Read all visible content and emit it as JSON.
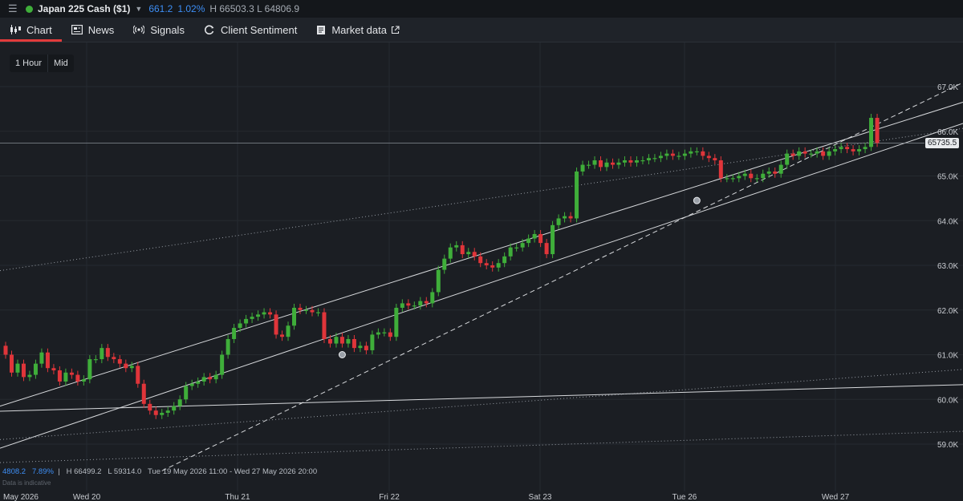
{
  "header": {
    "instrument": "Japan 225 Cash ($1)",
    "change": "661.2",
    "change_pct": "1.02%",
    "high_low": "H 66503.3 L 64806.9",
    "status_color": "#3fae3a"
  },
  "tabs": [
    {
      "label": "Chart",
      "icon": "candlestick-icon",
      "active": true
    },
    {
      "label": "News",
      "icon": "news-icon"
    },
    {
      "label": "Signals",
      "icon": "signal-icon"
    },
    {
      "label": "Client Sentiment",
      "icon": "sentiment-icon"
    },
    {
      "label": "Market data",
      "icon": "document-icon",
      "external_icon": "external-link-icon"
    }
  ],
  "toolbar": {
    "timeframe": "1 Hour",
    "price_mode": "Mid"
  },
  "info": {
    "change": "4808.2",
    "change_pct": "7.89%",
    "high": "H 66499.2",
    "low": "L 59314.0",
    "range": "Tue 19 May 2026 11:00 - Wed 27 May 2026 20:00",
    "disclaimer": "Data is indicative"
  },
  "current_price_label": "65735.5",
  "chart_data": {
    "type": "candlestick",
    "y_ticks": [
      "67.0K",
      "66.0K",
      "65.0K",
      "64.0K",
      "63.0K",
      "62.0K",
      "61.0K",
      "60.0K",
      "59.0K"
    ],
    "x_ticks": [
      "May 2026",
      "Wed 20",
      "Thu 21",
      "Fri 22",
      "Sat 23",
      "Tue 26",
      "Wed 27"
    ],
    "ylim": [
      58400,
      67600
    ],
    "colors": {
      "up": "#3fae3a",
      "down": "#e0353a",
      "line": "#d7d9dc",
      "grid": "#262a30"
    },
    "closes": [
      61000,
      60600,
      60800,
      60500,
      60550,
      60800,
      61050,
      60700,
      60650,
      60400,
      60600,
      60550,
      60400,
      60450,
      60900,
      60900,
      61150,
      60950,
      60900,
      60800,
      60700,
      60750,
      60350,
      59900,
      59750,
      59650,
      59700,
      59750,
      59850,
      60000,
      60300,
      60350,
      60400,
      60500,
      60450,
      60550,
      61000,
      61350,
      61600,
      61700,
      61800,
      61850,
      61900,
      61950,
      61900,
      61450,
      61400,
      61650,
      62050,
      62000,
      62000,
      61950,
      61950,
      61350,
      61250,
      61400,
      61250,
      61350,
      61150,
      61200,
      61100,
      61450,
      61500,
      61500,
      61400,
      62050,
      62150,
      62100,
      62100,
      62200,
      62150,
      62400,
      62900,
      63150,
      63400,
      63450,
      63250,
      63300,
      63200,
      63050,
      63000,
      62950,
      63050,
      63200,
      63400,
      63400,
      63500,
      63600,
      63700,
      63500,
      63250,
      63900,
      64050,
      64100,
      64050,
      65100,
      65250,
      65250,
      65350,
      65200,
      65300,
      65250,
      65300,
      65350,
      65300,
      65350,
      65350,
      65400,
      65400,
      65450,
      65500,
      65450,
      65450,
      65500,
      65550,
      65550,
      65450,
      65400,
      65350,
      64950,
      64950,
      64950,
      65000,
      65050,
      64950,
      64950,
      65050,
      65100,
      65050,
      65250,
      65500,
      65450,
      65550,
      65500,
      65500,
      65550,
      65450,
      65550,
      65600,
      65650,
      65600,
      65550,
      65600,
      65650,
      66300,
      65740
    ],
    "channel_lines": [
      {
        "style": "solid",
        "from": [
          0,
          59890
        ],
        "to": [
          151,
          66300
        ]
      },
      {
        "style": "solid",
        "from": [
          0,
          58950
        ],
        "to": [
          151,
          65800
        ]
      },
      {
        "style": "dashed",
        "from": [
          26,
          58400
        ],
        "to": [
          151,
          66550
        ]
      },
      {
        "style": "dotted",
        "from": [
          0,
          62900
        ],
        "to": [
          151,
          65900
        ]
      },
      {
        "style": "solid",
        "from": [
          0,
          59740
        ],
        "to": [
          151,
          60300
        ]
      },
      {
        "style": "dotted",
        "from": [
          0,
          59110
        ],
        "to": [
          151,
          60590
        ]
      },
      {
        "style": "dotted",
        "from": [
          0,
          58590
        ],
        "to": [
          151,
          59250
        ]
      }
    ]
  }
}
